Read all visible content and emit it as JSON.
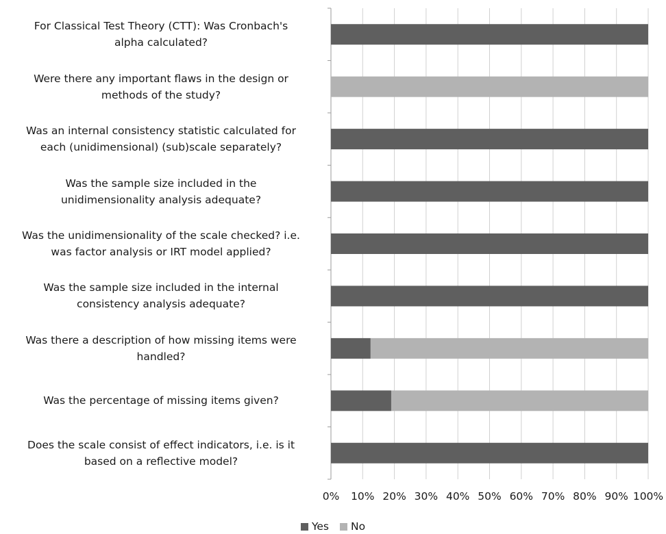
{
  "chart_data": {
    "type": "bar",
    "orientation": "horizontal",
    "stacked": true,
    "percent": true,
    "categories": [
      "For Classical Test Theory (CTT): Was Cronbach's alpha calculated?",
      "Were there any important flaws in the design or methods of the study?",
      "Was an internal consistency statistic calculated for each (unidimensional) (sub)scale separately?",
      "Was the sample size included in the unidimensionality analysis adequate?",
      "Was the unidimensionality of the scale checked? i.e. was factor analysis or IRT model applied?",
      "Was the sample size included in the internal consistency analysis adequate?",
      "Was there a description of how missing items were handled?",
      "Was the percentage of missing items given?",
      "Does the scale consist of effect indicators, i.e. is it based on a reflective model?"
    ],
    "series": [
      {
        "name": "Yes",
        "color": "#5f5f5f",
        "values": [
          100,
          0,
          100,
          100,
          100,
          100,
          12.5,
          19,
          100
        ]
      },
      {
        "name": "No",
        "color": "#b3b3b3",
        "values": [
          0,
          100,
          0,
          0,
          0,
          0,
          87.5,
          81,
          0
        ]
      }
    ],
    "xlim": [
      0,
      100
    ],
    "x_ticks": [
      "0%",
      "10%",
      "20%",
      "30%",
      "40%",
      "50%",
      "60%",
      "70%",
      "80%",
      "90%",
      "100%"
    ],
    "grid": true,
    "legend_position": "bottom"
  },
  "label_lines": [
    [
      "For Classical Test Theory (CTT): Was Cronbach's",
      "alpha calculated?"
    ],
    [
      "Were there any important flaws in the design or",
      "methods of the study?"
    ],
    [
      "Was an internal consistency statistic calculated for",
      "each (unidimensional) (sub)scale separately?"
    ],
    [
      "Was the sample size included in the",
      "unidimensionality analysis adequate?"
    ],
    [
      "Was the unidimensionality of the scale checked? i.e.",
      "was factor analysis or IRT model applied?"
    ],
    [
      "Was the sample size included in the internal",
      "consistency analysis adequate?"
    ],
    [
      "Was there a description of how missing items were",
      "handled?"
    ],
    [
      "Was the percentage of missing items given?"
    ],
    [
      "Does the scale consist of effect indicators, i.e. is it",
      "based on a reflective model?"
    ]
  ],
  "legend": {
    "yes_label": "Yes",
    "no_label": "No"
  }
}
